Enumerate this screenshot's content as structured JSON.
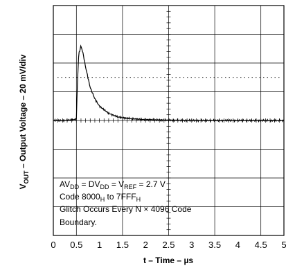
{
  "chart_data": {
    "type": "line",
    "xlabel": "t – Time – µs",
    "ylabel": "V_OUT – Output Voltage – 20 mV/div",
    "ylabel_parts": {
      "v": "V",
      "sub": "OUT",
      "rest": " – Output Voltage – 20 mV/div"
    },
    "x_ticks": [
      "0",
      "0.5",
      "1",
      "1.5",
      "2",
      "2.5",
      "3",
      "3.5",
      "4",
      "4.5",
      "5"
    ],
    "xlim": [
      0,
      5
    ],
    "y_divisions": 8,
    "grid": true,
    "reference_level_div": 5.5,
    "series": [
      {
        "x": [
          0.0,
          0.2,
          0.4,
          0.5,
          0.52,
          0.55,
          0.6,
          0.65,
          0.7,
          0.8,
          0.9,
          1.0,
          1.2,
          1.4,
          1.7,
          2.0,
          2.5,
          3.0,
          3.5,
          4.0,
          4.5,
          5.0
        ],
        "y": [
          4.0,
          4.0,
          4.02,
          4.05,
          5.2,
          6.3,
          6.6,
          6.3,
          5.85,
          5.15,
          4.75,
          4.5,
          4.25,
          4.12,
          4.06,
          4.03,
          4.01,
          4.0,
          4.0,
          4.0,
          4.0,
          4.0
        ]
      }
    ]
  },
  "annotations": {
    "line1": {
      "a": "AV",
      "a_sub": "DD",
      "b": " = DV",
      "b_sub": "DD",
      "c": " = V",
      "c_sub": "REF",
      "d": " = 2.7 V"
    },
    "line2": {
      "a": "Code 8000",
      "a_sub": "H",
      "b": " to 7FFF",
      "b_sub": "H"
    },
    "line3": "Glitch Occurs Every N × 4096 Code",
    "line4": "Boundary."
  }
}
